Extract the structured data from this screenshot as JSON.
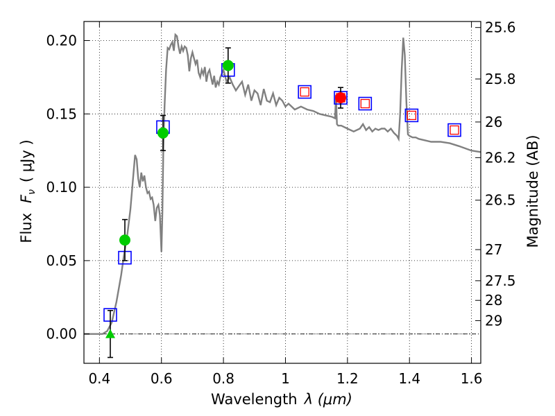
{
  "chart_data": {
    "type": "scatter",
    "title": "",
    "xlabel": "Wavelength",
    "xlabel_math": "λ (μm)",
    "ylabel": "Flux",
    "ylabel_math": "F",
    "ylabel_sub": "ν",
    "ylabel_unit": "( μJy )",
    "y2label": "Magnitude (AB)",
    "xlim": [
      0.35,
      1.63
    ],
    "ylim": [
      -0.02,
      0.213
    ],
    "grid": true,
    "xticks": [
      {
        "v": 0.4,
        "label": "0.4"
      },
      {
        "v": 0.6,
        "label": "0.6"
      },
      {
        "v": 0.8,
        "label": "0.8"
      },
      {
        "v": 1.0,
        "label": "1"
      },
      {
        "v": 1.2,
        "label": "1.2"
      },
      {
        "v": 1.4,
        "label": "1.4"
      },
      {
        "v": 1.6,
        "label": "1.6"
      }
    ],
    "yticks": [
      {
        "v": 0.0,
        "label": "0.00"
      },
      {
        "v": 0.05,
        "label": "0.05"
      },
      {
        "v": 0.1,
        "label": "0.10"
      },
      {
        "v": 0.15,
        "label": "0.15"
      },
      {
        "v": 0.2,
        "label": "0.20"
      }
    ],
    "y2ticks": [
      {
        "mag": 25.6,
        "label": "25.6",
        "flux": 0.2089
      },
      {
        "mag": 25.8,
        "label": "25.8",
        "flux": 0.1738
      },
      {
        "mag": 26.0,
        "label": "26",
        "flux": 0.1445
      },
      {
        "mag": 26.2,
        "label": "26.2",
        "flux": 0.1202
      },
      {
        "mag": 26.5,
        "label": "26.5",
        "flux": 0.0912
      },
      {
        "mag": 27.0,
        "label": "27",
        "flux": 0.0575
      },
      {
        "mag": 27.5,
        "label": "27.5",
        "flux": 0.0363
      },
      {
        "mag": 28.0,
        "label": "28",
        "flux": 0.0229
      },
      {
        "mag": 29.0,
        "label": "29",
        "flux": 0.0091
      }
    ],
    "series": [
      {
        "kind": "line",
        "color": "#808080",
        "x": [
          0.35,
          0.41,
          0.425,
          0.44,
          0.455,
          0.47,
          0.48,
          0.49,
          0.5,
          0.51,
          0.515,
          0.52,
          0.525,
          0.53,
          0.535,
          0.54,
          0.545,
          0.55,
          0.555,
          0.56,
          0.565,
          0.57,
          0.575,
          0.58,
          0.585,
          0.59,
          0.595,
          0.6,
          0.603,
          0.606,
          0.61,
          0.615,
          0.62,
          0.625,
          0.63,
          0.635,
          0.64,
          0.645,
          0.65,
          0.655,
          0.66,
          0.665,
          0.67,
          0.675,
          0.68,
          0.685,
          0.69,
          0.695,
          0.7,
          0.705,
          0.71,
          0.715,
          0.72,
          0.725,
          0.73,
          0.735,
          0.74,
          0.745,
          0.75,
          0.755,
          0.76,
          0.765,
          0.77,
          0.775,
          0.78,
          0.785,
          0.79,
          0.8,
          0.81,
          0.82,
          0.83,
          0.84,
          0.85,
          0.86,
          0.87,
          0.88,
          0.89,
          0.9,
          0.91,
          0.92,
          0.93,
          0.94,
          0.95,
          0.96,
          0.97,
          0.98,
          0.99,
          1.0,
          1.01,
          1.02,
          1.03,
          1.05,
          1.07,
          1.09,
          1.11,
          1.13,
          1.15,
          1.16,
          1.163,
          1.166,
          1.17,
          1.18,
          1.2,
          1.22,
          1.24,
          1.25,
          1.26,
          1.27,
          1.28,
          1.29,
          1.3,
          1.31,
          1.32,
          1.33,
          1.34,
          1.35,
          1.36,
          1.365,
          1.37,
          1.375,
          1.38,
          1.385,
          1.39,
          1.395,
          1.4,
          1.41,
          1.42,
          1.43,
          1.45,
          1.47,
          1.5,
          1.53,
          1.56,
          1.6,
          1.63
        ],
        "y": [
          0.0,
          0.0,
          0.002,
          0.008,
          0.022,
          0.04,
          0.055,
          0.068,
          0.085,
          0.11,
          0.122,
          0.119,
          0.106,
          0.1,
          0.11,
          0.104,
          0.108,
          0.1,
          0.096,
          0.097,
          0.092,
          0.093,
          0.088,
          0.077,
          0.086,
          0.088,
          0.081,
          0.056,
          0.083,
          0.125,
          0.155,
          0.18,
          0.195,
          0.194,
          0.197,
          0.199,
          0.193,
          0.204,
          0.203,
          0.196,
          0.191,
          0.196,
          0.193,
          0.196,
          0.195,
          0.19,
          0.179,
          0.188,
          0.192,
          0.188,
          0.184,
          0.187,
          0.178,
          0.175,
          0.18,
          0.177,
          0.182,
          0.172,
          0.178,
          0.18,
          0.175,
          0.17,
          0.176,
          0.168,
          0.172,
          0.17,
          0.175,
          0.18,
          0.172,
          0.175,
          0.17,
          0.166,
          0.169,
          0.172,
          0.163,
          0.17,
          0.159,
          0.166,
          0.164,
          0.156,
          0.167,
          0.159,
          0.158,
          0.164,
          0.156,
          0.161,
          0.159,
          0.155,
          0.157,
          0.155,
          0.153,
          0.155,
          0.153,
          0.152,
          0.15,
          0.149,
          0.148,
          0.147,
          0.163,
          0.143,
          0.142,
          0.142,
          0.14,
          0.138,
          0.14,
          0.143,
          0.139,
          0.141,
          0.138,
          0.14,
          0.139,
          0.14,
          0.14,
          0.138,
          0.14,
          0.137,
          0.135,
          0.133,
          0.15,
          0.18,
          0.202,
          0.19,
          0.158,
          0.136,
          0.135,
          0.134,
          0.134,
          0.133,
          0.132,
          0.131,
          0.131,
          0.13,
          0.128,
          0.125,
          0.124
        ]
      },
      {
        "name": "",
        "kind": "open-square",
        "color": "#0000ff",
        "x": [
          0.435,
          0.482,
          0.605,
          0.815,
          1.062,
          1.178,
          1.257,
          1.407,
          1.545
        ],
        "y": [
          0.013,
          0.052,
          0.141,
          0.18,
          0.165,
          0.161,
          0.157,
          0.149,
          0.139
        ]
      },
      {
        "name": "",
        "kind": "small-open-square",
        "color": "#ff0000",
        "x": [
          1.062,
          1.178,
          1.257,
          1.407,
          1.545
        ],
        "y": [
          0.165,
          0.161,
          0.157,
          0.149,
          0.139
        ]
      },
      {
        "name": "",
        "kind": "filled-circle",
        "color": "#00cc00",
        "x": [
          0.482,
          0.605,
          0.815
        ],
        "y": [
          0.064,
          0.137,
          0.183
        ],
        "err": [
          0.014,
          0.012,
          0.012
        ]
      },
      {
        "name": "",
        "kind": "filled-circle",
        "color": "#ff0000",
        "x": [
          1.178
        ],
        "y": [
          0.161
        ],
        "err": [
          0.007
        ]
      },
      {
        "name": "",
        "kind": "triangle-up",
        "color": "#00cc00",
        "x": [
          0.435
        ],
        "y": [
          0.0
        ],
        "err": [
          0.016
        ]
      }
    ]
  }
}
